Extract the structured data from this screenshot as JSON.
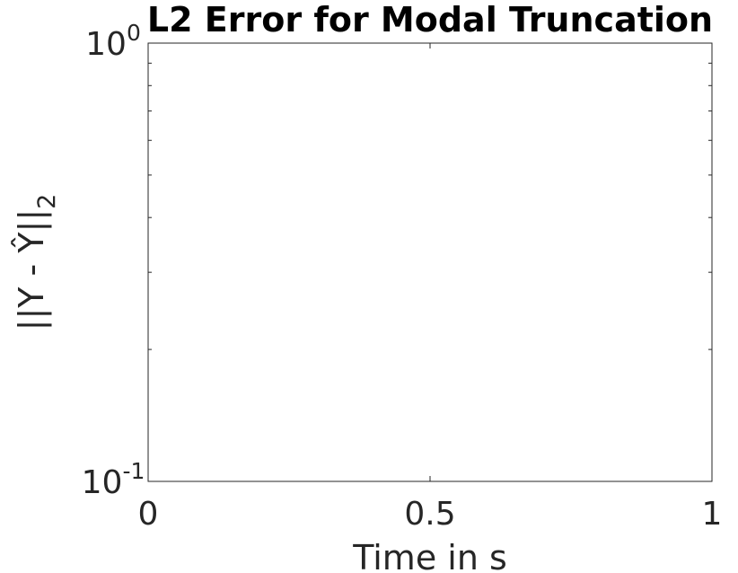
{
  "chart_data": {
    "type": "line",
    "title": "L2 Error for Modal Truncation",
    "xlabel": "Time in s",
    "ylabel": {
      "main": "||Y - Ŷ||",
      "subscript": "2"
    },
    "xlim": [
      0,
      1
    ],
    "ylim": [
      0.1,
      1
    ],
    "yscale": "log",
    "x_ticks": [
      {
        "value": 0,
        "label": "0"
      },
      {
        "value": 0.5,
        "label": "0.5"
      },
      {
        "value": 1,
        "label": "1"
      }
    ],
    "y_ticks": [
      {
        "value": 0.1,
        "base": "10",
        "exponent": "-1"
      },
      {
        "value": 1,
        "base": "10",
        "exponent": "0"
      }
    ],
    "y_minor_ticks": [
      0.2,
      0.3,
      0.4,
      0.5,
      0.6,
      0.7,
      0.8,
      0.9
    ],
    "series": [],
    "grid": false,
    "box": true,
    "colors": {
      "axis": "#262626",
      "title": "#000000",
      "background": "#ffffff"
    }
  }
}
